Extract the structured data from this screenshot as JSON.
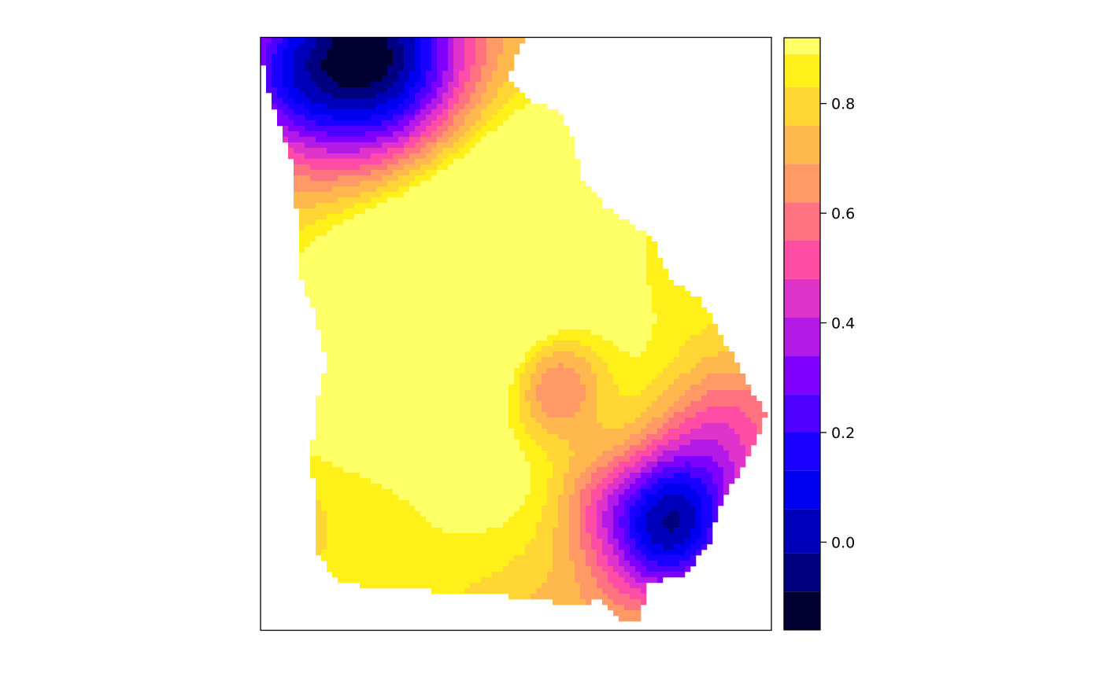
{
  "chart_data": {
    "type": "heatmap",
    "title": "",
    "xlabel": "",
    "ylabel": "",
    "colorbar": {
      "range": [
        -0.16,
        0.92
      ],
      "levels": [
        {
          "from": -0.16,
          "to": -0.09,
          "color": "#000033"
        },
        {
          "from": -0.09,
          "to": -0.02,
          "color": "#000080"
        },
        {
          "from": -0.02,
          "to": 0.06,
          "color": "#0000BB"
        },
        {
          "from": 0.06,
          "to": 0.13,
          "color": "#0000F0"
        },
        {
          "from": 0.13,
          "to": 0.2,
          "color": "#1A00FF"
        },
        {
          "from": 0.2,
          "to": 0.27,
          "color": "#4D00FF"
        },
        {
          "from": 0.27,
          "to": 0.34,
          "color": "#8000FF"
        },
        {
          "from": 0.34,
          "to": 0.41,
          "color": "#B31AE6"
        },
        {
          "from": 0.41,
          "to": 0.48,
          "color": "#E033CC"
        },
        {
          "from": 0.48,
          "to": 0.55,
          "color": "#FF4DA6"
        },
        {
          "from": 0.55,
          "to": 0.62,
          "color": "#FF7380"
        },
        {
          "from": 0.62,
          "to": 0.69,
          "color": "#FF9966"
        },
        {
          "from": 0.69,
          "to": 0.76,
          "color": "#FFB84D"
        },
        {
          "from": 0.76,
          "to": 0.83,
          "color": "#FFD633"
        },
        {
          "from": 0.83,
          "to": 0.89,
          "color": "#FFF019"
        },
        {
          "from": 0.89,
          "to": 0.96,
          "color": "#FFFF66"
        }
      ],
      "ticks": [
        {
          "value": 0.8,
          "label": "0.8"
        },
        {
          "value": 0.6,
          "label": "0.6"
        },
        {
          "value": 0.4,
          "label": "0.4"
        },
        {
          "value": 0.2,
          "label": "0.2"
        },
        {
          "value": 0.0,
          "label": "0.0"
        }
      ]
    },
    "region_outline": [
      [
        0.0,
        0.0
      ],
      [
        0.52,
        0.0
      ],
      [
        0.48,
        0.07
      ],
      [
        0.53,
        0.11
      ],
      [
        0.58,
        0.12
      ],
      [
        0.61,
        0.17
      ],
      [
        0.63,
        0.24
      ],
      [
        0.68,
        0.29
      ],
      [
        0.77,
        0.34
      ],
      [
        0.8,
        0.41
      ],
      [
        0.86,
        0.44
      ],
      [
        0.92,
        0.53
      ],
      [
        0.99,
        0.64
      ],
      [
        0.94,
        0.73
      ],
      [
        0.9,
        0.79
      ],
      [
        0.88,
        0.85
      ],
      [
        0.83,
        0.91
      ],
      [
        0.76,
        0.92
      ],
      [
        0.74,
        0.99
      ],
      [
        0.71,
        0.99
      ],
      [
        0.66,
        0.95
      ],
      [
        0.63,
        0.96
      ],
      [
        0.46,
        0.94
      ],
      [
        0.24,
        0.93
      ],
      [
        0.15,
        0.92
      ],
      [
        0.11,
        0.87
      ],
      [
        0.1,
        0.7
      ],
      [
        0.11,
        0.62
      ],
      [
        0.13,
        0.55
      ],
      [
        0.1,
        0.45
      ],
      [
        0.08,
        0.41
      ],
      [
        0.07,
        0.29
      ],
      [
        0.06,
        0.21
      ],
      [
        0.04,
        0.15
      ],
      [
        0.01,
        0.08
      ],
      [
        0.0,
        0.0
      ]
    ],
    "field_features": [
      {
        "fx": 0.22,
        "fy": 0.03,
        "amplitude": -1.0,
        "spread": 0.13
      },
      {
        "fx": 0.04,
        "fy": 0.08,
        "amplitude": -0.35,
        "spread": 0.09
      },
      {
        "fx": 0.45,
        "fy": 0.38,
        "amplitude": 0.42,
        "spread": 0.22
      },
      {
        "fx": 0.25,
        "fy": 0.52,
        "amplitude": 0.28,
        "spread": 0.14
      },
      {
        "fx": 0.58,
        "fy": 0.59,
        "amplitude": -0.38,
        "spread": 0.07
      },
      {
        "fx": 0.8,
        "fy": 0.82,
        "amplitude": -0.75,
        "spread": 0.09
      },
      {
        "fx": 0.9,
        "fy": 0.65,
        "amplitude": -0.25,
        "spread": 0.09
      },
      {
        "fx": 0.65,
        "fy": 0.78,
        "amplitude": -0.15,
        "spread": 0.06
      },
      {
        "fx": 0.15,
        "fy": 0.85,
        "amplitude": 0.06,
        "spread": 0.1
      }
    ],
    "field_base": 0.78
  }
}
